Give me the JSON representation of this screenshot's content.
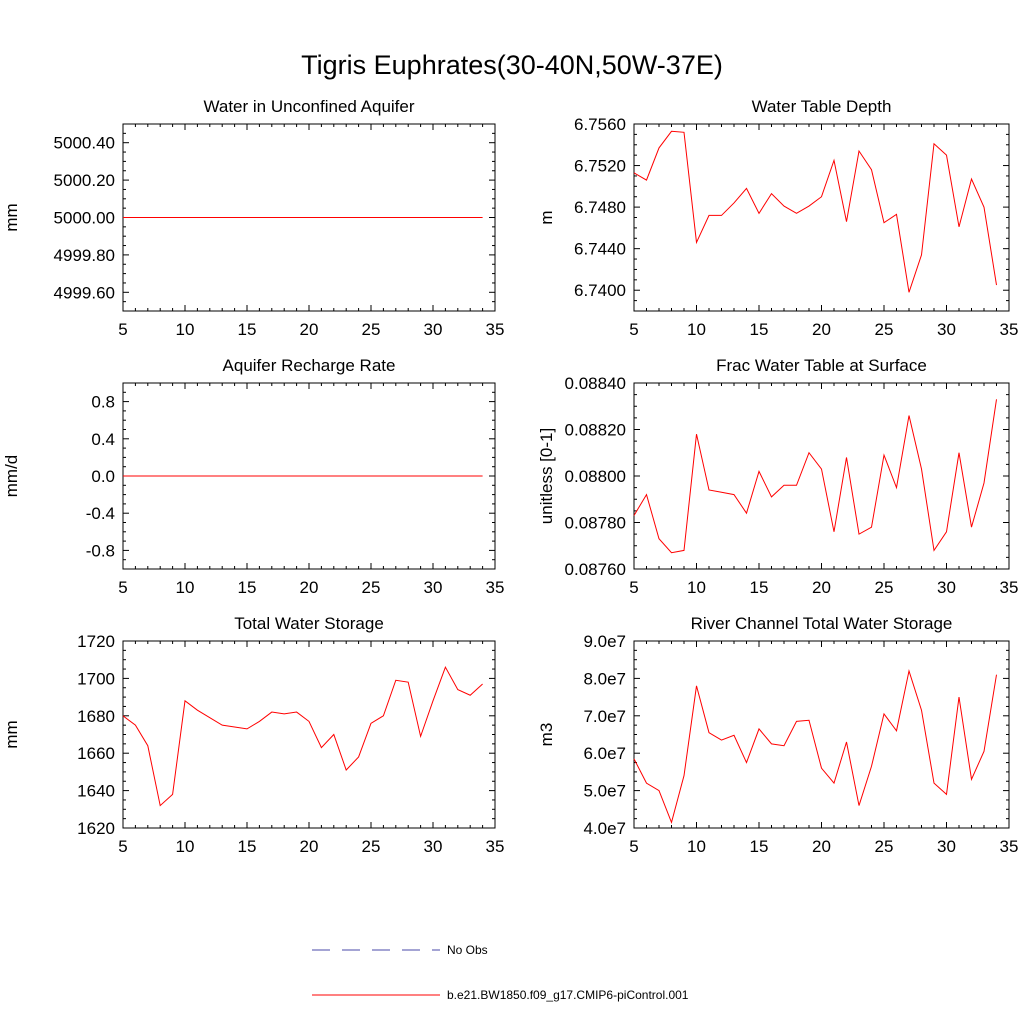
{
  "main_title": "Tigris Euphrates(30-40N,50W-37E)",
  "colors": {
    "series": "#ff0000",
    "obs": "#4a4aa8",
    "axis": "#000000"
  },
  "legend": {
    "obs_label": "No Obs",
    "model_label": "b.e21.BW1850.f09_g17.CMIP6-piControl.001"
  },
  "chart_data": [
    {
      "id": "water-in-unconfined-aquifer",
      "type": "line",
      "title": "Water in Unconfined Aquifer",
      "ylabel": "mm",
      "xlim": [
        5,
        35
      ],
      "ylim": [
        4999.5,
        5000.5
      ],
      "xticks": [
        5,
        10,
        15,
        20,
        25,
        30,
        35
      ],
      "xtick_labels": [
        "5",
        "10",
        "15",
        "20",
        "25",
        "30",
        "35"
      ],
      "yticks": [
        4999.6,
        4999.8,
        5000.0,
        5000.2,
        5000.4
      ],
      "ytick_labels": [
        "4999.60",
        "4999.80",
        "5000.00",
        "5000.20",
        "5000.40"
      ],
      "x": [
        5,
        6,
        7,
        8,
        9,
        10,
        11,
        12,
        13,
        14,
        15,
        16,
        17,
        18,
        19,
        20,
        21,
        22,
        23,
        24,
        25,
        26,
        27,
        28,
        29,
        30,
        31,
        32,
        33,
        34
      ],
      "values": [
        5000,
        5000,
        5000,
        5000,
        5000,
        5000,
        5000,
        5000,
        5000,
        5000,
        5000,
        5000,
        5000,
        5000,
        5000,
        5000,
        5000,
        5000,
        5000,
        5000,
        5000,
        5000,
        5000,
        5000,
        5000,
        5000,
        5000,
        5000,
        5000,
        5000
      ]
    },
    {
      "id": "water-table-depth",
      "type": "line",
      "title": "Water Table Depth",
      "ylabel": "m",
      "xlim": [
        5,
        35
      ],
      "ylim": [
        6.738,
        6.756
      ],
      "xticks": [
        5,
        10,
        15,
        20,
        25,
        30,
        35
      ],
      "xtick_labels": [
        "5",
        "10",
        "15",
        "20",
        "25",
        "30",
        "35"
      ],
      "yticks": [
        6.74,
        6.744,
        6.748,
        6.752,
        6.756
      ],
      "ytick_labels": [
        "6.7400",
        "6.7440",
        "6.7480",
        "6.7520",
        "6.7560"
      ],
      "x": [
        5,
        6,
        7,
        8,
        9,
        10,
        11,
        12,
        13,
        14,
        15,
        16,
        17,
        18,
        19,
        20,
        21,
        22,
        23,
        24,
        25,
        26,
        27,
        28,
        29,
        30,
        31,
        32,
        33,
        34
      ],
      "values": [
        6.7513,
        6.7506,
        6.7537,
        6.7553,
        6.7552,
        6.7446,
        6.7472,
        6.7472,
        6.7484,
        6.7498,
        6.7474,
        6.7493,
        6.7481,
        6.7474,
        6.7481,
        6.749,
        6.7525,
        6.7466,
        6.7534,
        6.7516,
        6.7465,
        6.7473,
        6.7398,
        6.7434,
        6.7541,
        6.753,
        6.7461,
        6.7507,
        6.748,
        6.7405
      ]
    },
    {
      "id": "aquifer-recharge-rate",
      "type": "line",
      "title": "Aquifer Recharge Rate",
      "ylabel": "mm/d",
      "xlim": [
        5,
        35
      ],
      "ylim": [
        -1,
        1
      ],
      "xticks": [
        5,
        10,
        15,
        20,
        25,
        30,
        35
      ],
      "xtick_labels": [
        "5",
        "10",
        "15",
        "20",
        "25",
        "30",
        "35"
      ],
      "yticks": [
        -0.8,
        -0.4,
        0,
        0.4,
        0.8
      ],
      "ytick_labels": [
        "-0.8",
        "-0.4",
        "0.0",
        "0.4",
        "0.8"
      ],
      "x": [
        5,
        6,
        7,
        8,
        9,
        10,
        11,
        12,
        13,
        14,
        15,
        16,
        17,
        18,
        19,
        20,
        21,
        22,
        23,
        24,
        25,
        26,
        27,
        28,
        29,
        30,
        31,
        32,
        33,
        34
      ],
      "values": [
        0,
        0,
        0,
        0,
        0,
        0,
        0,
        0,
        0,
        0,
        0,
        0,
        0,
        0,
        0,
        0,
        0,
        0,
        0,
        0,
        0,
        0,
        0,
        0,
        0,
        0,
        0,
        0,
        0,
        0
      ]
    },
    {
      "id": "frac-water-table-at-surface",
      "type": "line",
      "title": "Frac Water Table at Surface",
      "ylabel": "unitless [0-1]",
      "xlim": [
        5,
        35
      ],
      "ylim": [
        0.0876,
        0.0884
      ],
      "xticks": [
        5,
        10,
        15,
        20,
        25,
        30,
        35
      ],
      "xtick_labels": [
        "5",
        "10",
        "15",
        "20",
        "25",
        "30",
        "35"
      ],
      "yticks": [
        0.0876,
        0.0878,
        0.088,
        0.0882,
        0.0884
      ],
      "ytick_labels": [
        "0.08760",
        "0.08780",
        "0.08800",
        "0.08820",
        "0.08840"
      ],
      "x": [
        5,
        6,
        7,
        8,
        9,
        10,
        11,
        12,
        13,
        14,
        15,
        16,
        17,
        18,
        19,
        20,
        21,
        22,
        23,
        24,
        25,
        26,
        27,
        28,
        29,
        30,
        31,
        32,
        33,
        34
      ],
      "values": [
        0.08783,
        0.08792,
        0.08773,
        0.08767,
        0.08768,
        0.08818,
        0.08794,
        0.08793,
        0.08792,
        0.08784,
        0.08802,
        0.08791,
        0.08796,
        0.08796,
        0.0881,
        0.08803,
        0.08776,
        0.08808,
        0.08775,
        0.08778,
        0.08809,
        0.08795,
        0.08826,
        0.08803,
        0.08768,
        0.08776,
        0.0881,
        0.08778,
        0.08797,
        0.08833
      ]
    },
    {
      "id": "total-water-storage",
      "type": "line",
      "title": "Total Water Storage",
      "ylabel": "mm",
      "xlim": [
        5,
        35
      ],
      "ylim": [
        1620,
        1720
      ],
      "xticks": [
        5,
        10,
        15,
        20,
        25,
        30,
        35
      ],
      "xtick_labels": [
        "5",
        "10",
        "15",
        "20",
        "25",
        "30",
        "35"
      ],
      "yticks": [
        1620,
        1640,
        1660,
        1680,
        1700,
        1720
      ],
      "ytick_labels": [
        "1620",
        "1640",
        "1660",
        "1680",
        "1700",
        "1720"
      ],
      "x": [
        5,
        6,
        7,
        8,
        9,
        10,
        11,
        12,
        13,
        14,
        15,
        16,
        17,
        18,
        19,
        20,
        21,
        22,
        23,
        24,
        25,
        26,
        27,
        28,
        29,
        30,
        31,
        32,
        33,
        34
      ],
      "values": [
        1680,
        1675,
        1664,
        1632,
        1638,
        1688,
        1683,
        1679,
        1675,
        1674,
        1673,
        1677,
        1682,
        1681,
        1682,
        1677,
        1663,
        1670,
        1651,
        1658,
        1676,
        1680,
        1699,
        1698,
        1669,
        1688,
        1706,
        1694,
        1691,
        1697
      ]
    },
    {
      "id": "river-channel-total-water-storage",
      "type": "line",
      "title": "River Channel Total Water Storage",
      "ylabel": "m3",
      "xlim": [
        5,
        35
      ],
      "ylim": [
        40000000,
        90000000
      ],
      "xticks": [
        5,
        10,
        15,
        20,
        25,
        30,
        35
      ],
      "xtick_labels": [
        "5",
        "10",
        "15",
        "20",
        "25",
        "30",
        "35"
      ],
      "yticks": [
        40000000,
        50000000,
        60000000,
        70000000,
        80000000,
        90000000
      ],
      "ytick_labels": [
        "4.0e7",
        "5.0e7",
        "6.0e7",
        "7.0e7",
        "8.0e7",
        "9.0e7"
      ],
      "x": [
        5,
        6,
        7,
        8,
        9,
        10,
        11,
        12,
        13,
        14,
        15,
        16,
        17,
        18,
        19,
        20,
        21,
        22,
        23,
        24,
        25,
        26,
        27,
        28,
        29,
        30,
        31,
        32,
        33,
        34
      ],
      "values": [
        58500000,
        52000000,
        50000000,
        41500000,
        54000000,
        78000000,
        65500000,
        63500000,
        64800000,
        57500000,
        66500000,
        62500000,
        62000000,
        68500000,
        68800000,
        56000000,
        52000000,
        63000000,
        46000000,
        56500000,
        70500000,
        66000000,
        82000000,
        71500000,
        52000000,
        49000000,
        75000000,
        53000000,
        60500000,
        81000000
      ]
    }
  ]
}
